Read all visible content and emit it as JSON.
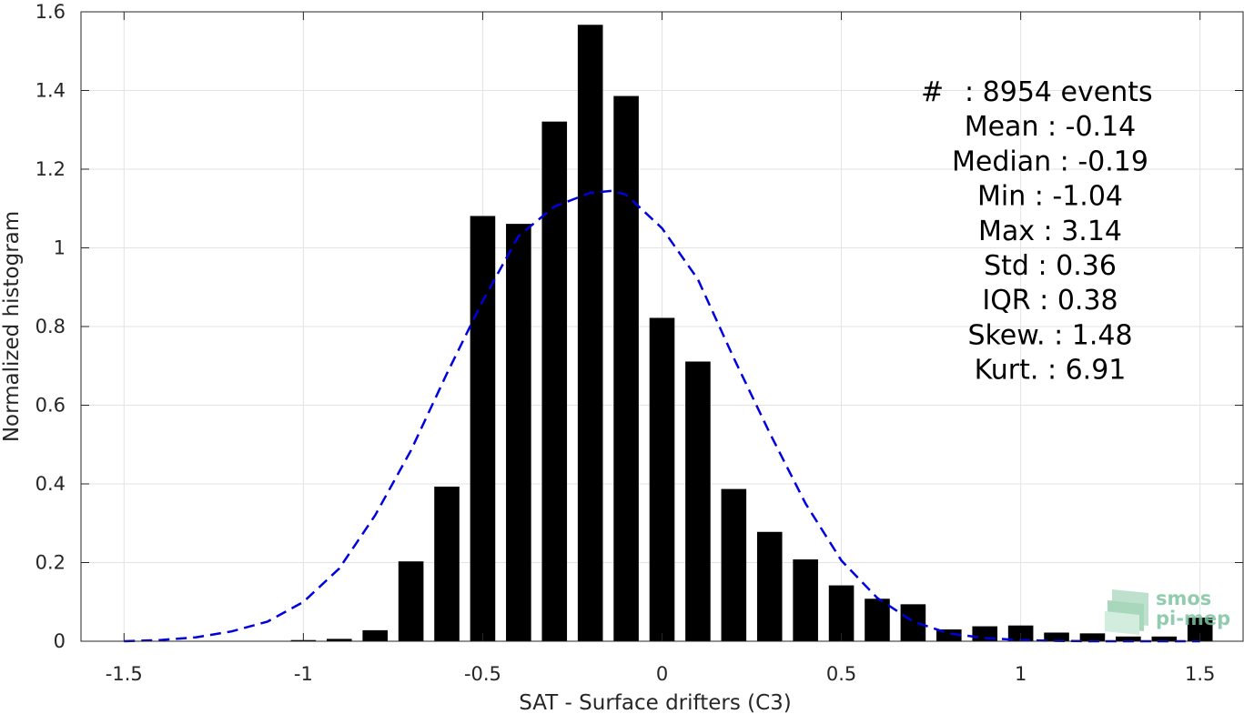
{
  "chart_data": {
    "type": "bar",
    "xlabel": "SAT - Surface drifters (C3)",
    "ylabel": "Normalized histogram",
    "xlim": [
      -1.62,
      1.62
    ],
    "ylim": [
      0,
      1.6
    ],
    "xticks": [
      -1.5,
      -1,
      -0.5,
      0,
      0.5,
      1,
      1.5
    ],
    "xtick_labels": [
      "-1.5",
      "-1",
      "-0.5",
      "0",
      "0.5",
      "1",
      "1.5"
    ],
    "yticks": [
      0,
      0.2,
      0.4,
      0.6,
      0.8,
      1,
      1.2,
      1.4,
      1.6
    ],
    "ytick_labels": [
      "0",
      "0.2",
      "0.4",
      "0.6",
      "0.8",
      "1",
      "1.2",
      "1.4",
      "1.6"
    ],
    "grid": true,
    "bar_color": "#000000",
    "fit_color": "#0000dd",
    "bar_width": 0.07,
    "series": [
      {
        "type": "bar",
        "x": [
          -1.0,
          -0.9,
          -0.8,
          -0.7,
          -0.6,
          -0.5,
          -0.4,
          -0.3,
          -0.2,
          -0.1,
          0.0,
          0.1,
          0.2,
          0.3,
          0.4,
          0.5,
          0.6,
          0.7,
          0.8,
          0.9,
          1.0,
          1.1,
          1.2,
          1.3,
          1.4,
          1.5
        ],
        "values": [
          0.003,
          0.006,
          0.028,
          0.203,
          0.393,
          1.081,
          1.061,
          1.321,
          1.567,
          1.386,
          0.822,
          0.711,
          0.387,
          0.278,
          0.208,
          0.142,
          0.108,
          0.094,
          0.03,
          0.038,
          0.04,
          0.022,
          0.02,
          0.012,
          0.012,
          0.06
        ]
      },
      {
        "type": "line",
        "style": "dashed",
        "x": [
          -1.5,
          -1.4,
          -1.3,
          -1.2,
          -1.1,
          -1.0,
          -0.9,
          -0.8,
          -0.7,
          -0.6,
          -0.5,
          -0.4,
          -0.3,
          -0.2,
          -0.14,
          -0.1,
          0.0,
          0.1,
          0.2,
          0.3,
          0.4,
          0.5,
          0.6,
          0.7,
          0.8,
          0.9,
          1.0,
          1.1,
          1.2,
          1.3,
          1.4,
          1.5
        ],
        "values": [
          0.0,
          0.003,
          0.01,
          0.025,
          0.05,
          0.1,
          0.185,
          0.32,
          0.485,
          0.68,
          0.865,
          1.03,
          1.105,
          1.14,
          1.145,
          1.135,
          1.05,
          0.92,
          0.72,
          0.53,
          0.35,
          0.205,
          0.11,
          0.05,
          0.02,
          0.008,
          0.003,
          0.001,
          0.0,
          0.0,
          0.0,
          0.0
        ]
      }
    ],
    "annotations": [
      {
        "prefix": "#",
        "text": ": 8954 events"
      },
      {
        "text": "Mean : -0.14"
      },
      {
        "text": "Median : -0.19"
      },
      {
        "text": "Min : -1.04"
      },
      {
        "text": "Max : 3.14"
      },
      {
        "text": "Std : 0.36"
      },
      {
        "text": "IQR : 0.38"
      },
      {
        "text": "Skew. : 1.48"
      },
      {
        "text": "Kurt. : 6.91"
      }
    ]
  },
  "logo": {
    "line1": "smos",
    "line2": "pi-mep"
  }
}
